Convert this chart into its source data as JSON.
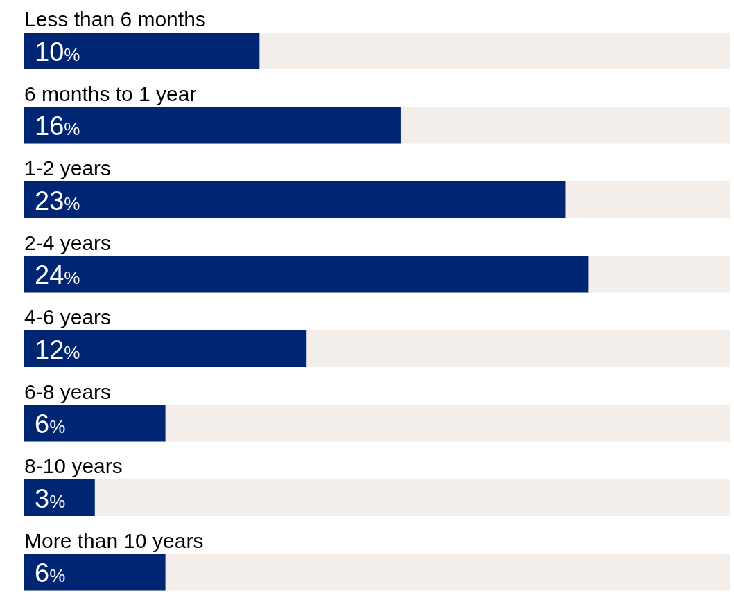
{
  "chart_data": {
    "type": "bar",
    "orientation": "horizontal",
    "categories": [
      "Less than 6 months",
      "6 months to 1 year",
      "1-2 years",
      "2-4 years",
      "4-6 years",
      "6-8 years",
      "8-10 years",
      "More than 10 years"
    ],
    "values": [
      10,
      16,
      23,
      24,
      12,
      6,
      3,
      6
    ],
    "value_labels": [
      "10%",
      "16%",
      "23%",
      "24%",
      "12%",
      "6%",
      "3%",
      "6%"
    ],
    "color": "#002673",
    "xlim": [
      0,
      30
    ]
  }
}
